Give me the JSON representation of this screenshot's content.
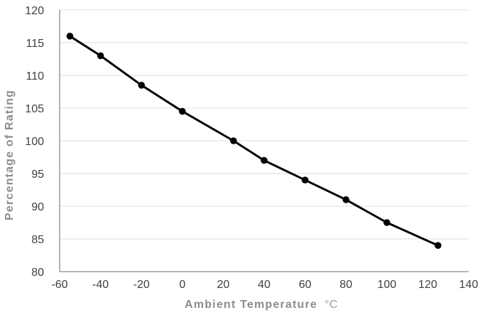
{
  "chart_data": {
    "type": "line",
    "title": "",
    "xlabel": "Ambient Temperature",
    "xlabel_unit": "°C",
    "ylabel": "Percentage of Rating",
    "x": [
      -55,
      -40,
      -20,
      0,
      25,
      40,
      60,
      80,
      100,
      125
    ],
    "y": [
      116,
      113,
      108.5,
      104.5,
      100,
      97,
      94,
      91,
      87.5,
      84
    ],
    "xlim": [
      -60,
      140
    ],
    "ylim": [
      80,
      120
    ],
    "x_ticks": [
      -60,
      -40,
      -20,
      0,
      20,
      40,
      60,
      80,
      100,
      120,
      140
    ],
    "y_ticks": [
      80,
      85,
      90,
      95,
      100,
      105,
      110,
      115,
      120
    ],
    "grid": "horizontal",
    "legend": "none",
    "colors": {
      "line": "#000000",
      "marker": "#000000",
      "grid": "#dcdcdc",
      "axis": "#8a8a8a",
      "tick_label": "#3f3f3f",
      "axis_title": "#8c8c8c",
      "axis_unit": "#9d9d9d",
      "background": "#ffffff"
    }
  }
}
